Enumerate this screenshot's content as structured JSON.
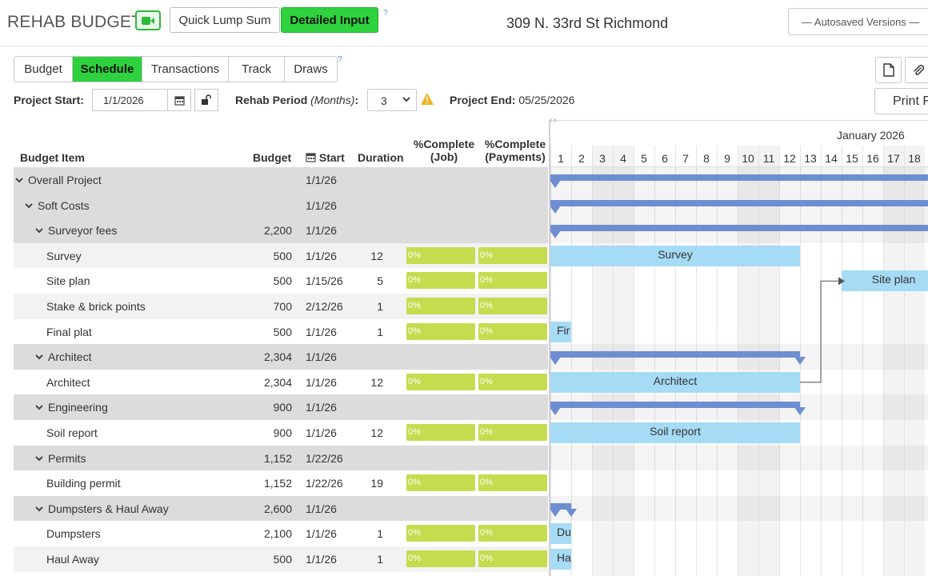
{
  "header": {
    "app_title": "REHAB BUDGET",
    "mode_quick": "Quick Lump Sum",
    "mode_detailed": "Detailed Input",
    "help": "?",
    "address": "309 N. 33rd St Richmond",
    "autosave": "— Autosaved Versions —"
  },
  "tabs": [
    {
      "label": "Budget"
    },
    {
      "label": "Schedule"
    },
    {
      "label": "Transactions"
    },
    {
      "label": "Track"
    },
    {
      "label": "Draws"
    }
  ],
  "toolbar": {
    "print_label": "Print F"
  },
  "settings": {
    "project_start_label": "Project Start:",
    "project_start_value": "1/1/2026",
    "rehab_period_label": "Rehab Period",
    "rehab_period_unit": "(Months)",
    "rehab_period_colon": ":",
    "rehab_period_value": "3",
    "project_end_label": "Project End:",
    "project_end_value": "05/25/2026"
  },
  "columns": {
    "item": "Budget Item",
    "budget": "Budget",
    "start": "Start",
    "duration": "Duration",
    "pct_job_1": "%Complete",
    "pct_job_2": "(Job)",
    "pct_pay_1": "%Complete",
    "pct_pay_2": "(Payments)"
  },
  "rows": [
    {
      "name": "Overall Project",
      "budget": "",
      "start": "1/1/26",
      "duration": "",
      "pct_job": "",
      "pct_pay": ""
    },
    {
      "name": "Soft Costs",
      "budget": "",
      "start": "1/1/26",
      "duration": "",
      "pct_job": "",
      "pct_pay": ""
    },
    {
      "name": "Surveyor fees",
      "budget": "2,200",
      "start": "1/1/26",
      "duration": "",
      "pct_job": "",
      "pct_pay": ""
    },
    {
      "name": "Survey",
      "budget": "500",
      "start": "1/1/26",
      "duration": "12",
      "pct_job": "0%",
      "pct_pay": "0%"
    },
    {
      "name": "Site plan",
      "budget": "500",
      "start": "1/15/26",
      "duration": "5",
      "pct_job": "0%",
      "pct_pay": "0%"
    },
    {
      "name": "Stake & brick points",
      "budget": "700",
      "start": "2/12/26",
      "duration": "1",
      "pct_job": "0%",
      "pct_pay": "0%"
    },
    {
      "name": "Final plat",
      "budget": "500",
      "start": "1/1/26",
      "duration": "1",
      "pct_job": "0%",
      "pct_pay": "0%"
    },
    {
      "name": "Architect",
      "budget": "2,304",
      "start": "1/1/26",
      "duration": "",
      "pct_job": "",
      "pct_pay": ""
    },
    {
      "name": "Architect",
      "budget": "2,304",
      "start": "1/1/26",
      "duration": "12",
      "pct_job": "0%",
      "pct_pay": "0%"
    },
    {
      "name": "Engineering",
      "budget": "900",
      "start": "1/1/26",
      "duration": "",
      "pct_job": "",
      "pct_pay": ""
    },
    {
      "name": "Soil report",
      "budget": "900",
      "start": "1/1/26",
      "duration": "12",
      "pct_job": "0%",
      "pct_pay": "0%"
    },
    {
      "name": "Permits",
      "budget": "1,152",
      "start": "1/22/26",
      "duration": "",
      "pct_job": "",
      "pct_pay": ""
    },
    {
      "name": "Building permit",
      "budget": "1,152",
      "start": "1/22/26",
      "duration": "19",
      "pct_job": "0%",
      "pct_pay": "0%"
    },
    {
      "name": "Dumpsters & Haul Away",
      "budget": "2,600",
      "start": "1/1/26",
      "duration": "",
      "pct_job": "",
      "pct_pay": ""
    },
    {
      "name": "Dumpsters",
      "budget": "2,100",
      "start": "1/1/26",
      "duration": "1",
      "pct_job": "0%",
      "pct_pay": "0%"
    },
    {
      "name": "Haul Away",
      "budget": "500",
      "start": "1/1/26",
      "duration": "1",
      "pct_job": "0%",
      "pct_pay": "0%"
    }
  ],
  "gantt": {
    "month": "January 2026",
    "days": [
      "1",
      "2",
      "3",
      "4",
      "5",
      "6",
      "7",
      "8",
      "9",
      "10",
      "11",
      "12",
      "13",
      "14",
      "15",
      "16",
      "17",
      "18"
    ],
    "bars": {
      "survey": "Survey",
      "site_plan": "Site plan",
      "final_plat": "Fir",
      "architect": "Architect",
      "soil_report": "Soil report",
      "dumpsters": "Du",
      "haul_away": "Ha"
    }
  },
  "colors": {
    "accent_green": "#2ed13e",
    "progress_green": "#c5dc4e",
    "summary_bar": "#6d8ed1",
    "task_bar": "#a6dbf5"
  }
}
